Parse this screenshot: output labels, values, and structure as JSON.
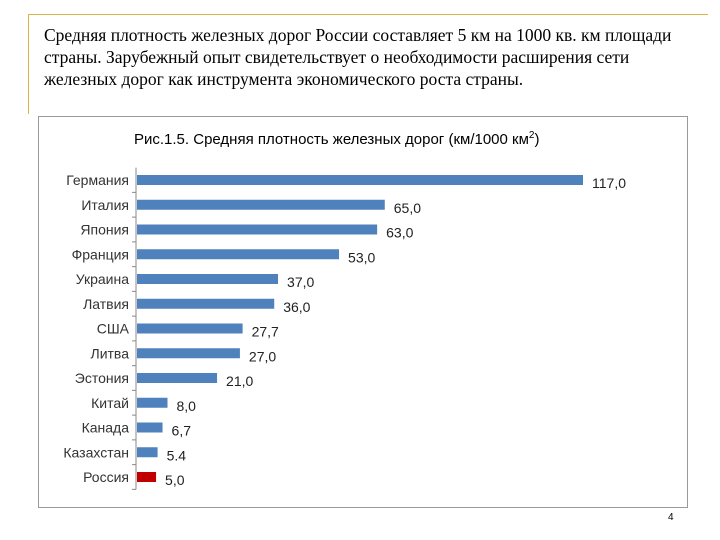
{
  "slide": {
    "heading": "Средняя плотность железных дорог России составляет 5 км на 1000 кв. км площади страны. Зарубежный опыт свидетельствует о необходимости расширения сети железных дорог как инструмента экономического роста страны.",
    "page_number": "4"
  },
  "colors": {
    "bar": "#4f81bd",
    "highlight_bar": "#c00000",
    "frame_accent": "#d9b24c"
  },
  "chart_data": {
    "type": "bar",
    "orientation": "horizontal",
    "title": "Рис.1.5. Средняя плотность железных дорог (км/1000 км²)",
    "categories": [
      "Германия",
      "Италия",
      "Япония",
      "Франция",
      "Украина",
      "Латвия",
      "США",
      "Литва",
      "Эстония",
      "Китай",
      "Канада",
      "Казахстан",
      "Россия"
    ],
    "values": [
      117.0,
      65.0,
      63.0,
      53.0,
      37.0,
      36.0,
      27.7,
      27.0,
      21.0,
      8.0,
      6.7,
      5.4,
      5.0
    ],
    "value_labels": [
      "117,0",
      "65,0",
      "63,0",
      "53,0",
      "37,0",
      "36,0",
      "27,7",
      "27,0",
      "21,0",
      "8,0",
      "6,7",
      "5.4",
      "5,0"
    ],
    "highlight_category": "Россия",
    "xlim": [
      0,
      117
    ],
    "grid": false,
    "legend": "none"
  }
}
